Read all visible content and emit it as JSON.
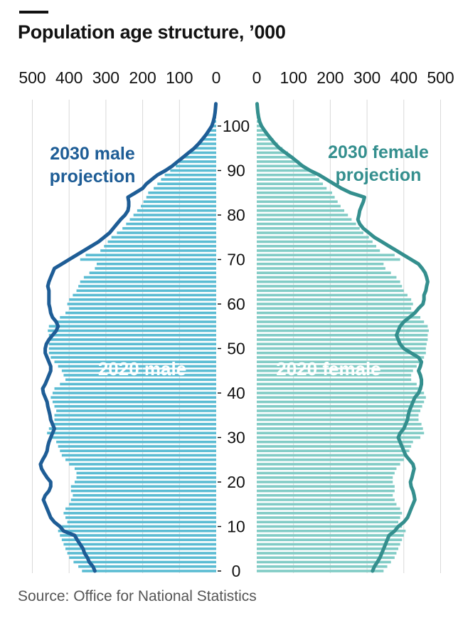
{
  "title": "Population age structure, ’000",
  "source": "Source: Office for National Statistics",
  "colors": {
    "male_bar": "#5BBCD3",
    "female_bar": "#82CCC6",
    "male_line": "#1E5D96",
    "female_line": "#348F8E",
    "grid": "#d9d9d9",
    "axis": "#121212"
  },
  "chart_data": {
    "type": "bar",
    "orientation": "horizontal",
    "layout": "population-pyramid",
    "y_ticks": [
      "0",
      "10",
      "20",
      "30",
      "40",
      "50",
      "60",
      "70",
      "80",
      "90",
      "100"
    ],
    "x_ticks_left": [
      "500",
      "400",
      "300",
      "200",
      "100",
      "0"
    ],
    "x_ticks_right": [
      "0",
      "100",
      "200",
      "300",
      "400",
      "500"
    ],
    "xlim": [
      0,
      500
    ],
    "ylim": [
      0,
      105
    ],
    "grid": true,
    "ages": [
      0,
      1,
      2,
      3,
      4,
      5,
      6,
      7,
      8,
      9,
      10,
      11,
      12,
      13,
      14,
      15,
      16,
      17,
      18,
      19,
      20,
      21,
      22,
      23,
      24,
      25,
      26,
      27,
      28,
      29,
      30,
      31,
      32,
      33,
      34,
      35,
      36,
      37,
      38,
      39,
      40,
      41,
      42,
      43,
      44,
      45,
      46,
      47,
      48,
      49,
      50,
      51,
      52,
      53,
      54,
      55,
      56,
      57,
      58,
      59,
      60,
      61,
      62,
      63,
      64,
      65,
      66,
      67,
      68,
      69,
      70,
      71,
      72,
      73,
      74,
      75,
      76,
      77,
      78,
      79,
      80,
      81,
      82,
      83,
      84,
      85,
      86,
      87,
      88,
      89,
      90,
      91,
      92,
      93,
      94,
      95,
      96,
      97,
      98,
      99,
      100,
      101,
      102,
      103,
      104,
      105
    ],
    "series": [
      {
        "name": "2020 male",
        "kind": "bar",
        "side": "left",
        "values": [
          365,
          375,
          388,
          400,
          405,
          410,
          415,
          420,
          425,
          430,
          420,
          405,
          410,
          415,
          410,
          400,
          395,
          390,
          395,
          395,
          385,
          380,
          380,
          385,
          400,
          410,
          420,
          425,
          430,
          435,
          450,
          460,
          455,
          450,
          440,
          440,
          435,
          440,
          445,
          450,
          445,
          440,
          425,
          410,
          415,
          420,
          430,
          440,
          450,
          455,
          455,
          455,
          455,
          455,
          458,
          455,
          440,
          425,
          410,
          400,
          405,
          400,
          390,
          380,
          375,
          370,
          360,
          345,
          330,
          325,
          370,
          355,
          315,
          305,
          295,
          285,
          270,
          255,
          245,
          235,
          225,
          215,
          205,
          198,
          190,
          185,
          170,
          160,
          150,
          140,
          125,
          110,
          100,
          88,
          75,
          62,
          50,
          40,
          30,
          20,
          12,
          8,
          5,
          3,
          2,
          1
        ]
      },
      {
        "name": "2020 female",
        "kind": "bar",
        "side": "right",
        "values": [
          345,
          355,
          365,
          375,
          380,
          385,
          390,
          395,
          400,
          405,
          395,
          385,
          390,
          395,
          390,
          380,
          375,
          370,
          375,
          375,
          370,
          370,
          375,
          380,
          390,
          400,
          410,
          415,
          420,
          425,
          445,
          455,
          452,
          448,
          440,
          440,
          445,
          450,
          455,
          460,
          455,
          450,
          435,
          420,
          420,
          425,
          435,
          445,
          455,
          460,
          460,
          462,
          465,
          465,
          468,
          465,
          455,
          445,
          430,
          420,
          425,
          420,
          410,
          400,
          395,
          390,
          380,
          365,
          350,
          345,
          390,
          375,
          335,
          325,
          315,
          305,
          290,
          280,
          270,
          258,
          248,
          238,
          228,
          220,
          212,
          205,
          190,
          180,
          170,
          160,
          145,
          130,
          115,
          100,
          85,
          70,
          57,
          45,
          33,
          22,
          14,
          9,
          5,
          3,
          2,
          1
        ]
      },
      {
        "name": "2030 male projection",
        "kind": "line",
        "side": "left",
        "values": [
          330,
          335,
          345,
          350,
          358,
          362,
          370,
          378,
          385,
          415,
          425,
          440,
          450,
          455,
          460,
          465,
          470,
          465,
          455,
          450,
          450,
          460,
          468,
          475,
          478,
          472,
          465,
          460,
          458,
          455,
          450,
          445,
          440,
          445,
          450,
          452,
          455,
          458,
          460,
          465,
          470,
          472,
          465,
          460,
          455,
          450,
          450,
          455,
          460,
          465,
          465,
          462,
          455,
          445,
          435,
          430,
          435,
          445,
          450,
          452,
          455,
          455,
          455,
          455,
          458,
          455,
          450,
          445,
          440,
          420,
          400,
          380,
          360,
          340,
          320,
          305,
          290,
          280,
          270,
          260,
          248,
          240,
          238,
          238,
          240,
          220,
          200,
          190,
          175,
          160,
          138,
          120,
          105,
          90,
          75,
          60,
          48,
          38,
          28,
          20,
          12,
          8,
          5,
          3,
          2,
          1
        ]
      },
      {
        "name": "2030 female projection",
        "kind": "line",
        "side": "right",
        "values": [
          315,
          320,
          328,
          335,
          340,
          345,
          350,
          355,
          360,
          375,
          385,
          400,
          410,
          415,
          420,
          425,
          430,
          428,
          425,
          420,
          418,
          422,
          425,
          428,
          425,
          415,
          405,
          400,
          395,
          390,
          385,
          390,
          400,
          405,
          410,
          412,
          415,
          420,
          425,
          430,
          440,
          445,
          448,
          448,
          445,
          440,
          445,
          448,
          440,
          420,
          400,
          390,
          385,
          380,
          385,
          390,
          400,
          415,
          430,
          440,
          452,
          455,
          455,
          460,
          462,
          465,
          462,
          458,
          450,
          440,
          420,
          400,
          380,
          360,
          340,
          320,
          305,
          290,
          280,
          275,
          278,
          280,
          285,
          290,
          293,
          255,
          230,
          210,
          190,
          170,
          145,
          125,
          110,
          95,
          78,
          62,
          50,
          40,
          30,
          21,
          13,
          8,
          5,
          3,
          2,
          1
        ]
      }
    ],
    "annotations": {
      "male_projection_line1": "2030 male",
      "male_projection_line2": "projection",
      "female_projection_line1": "2030 female",
      "female_projection_line2": "projection",
      "male_current": "2020 male",
      "female_current": "2020 female"
    }
  }
}
